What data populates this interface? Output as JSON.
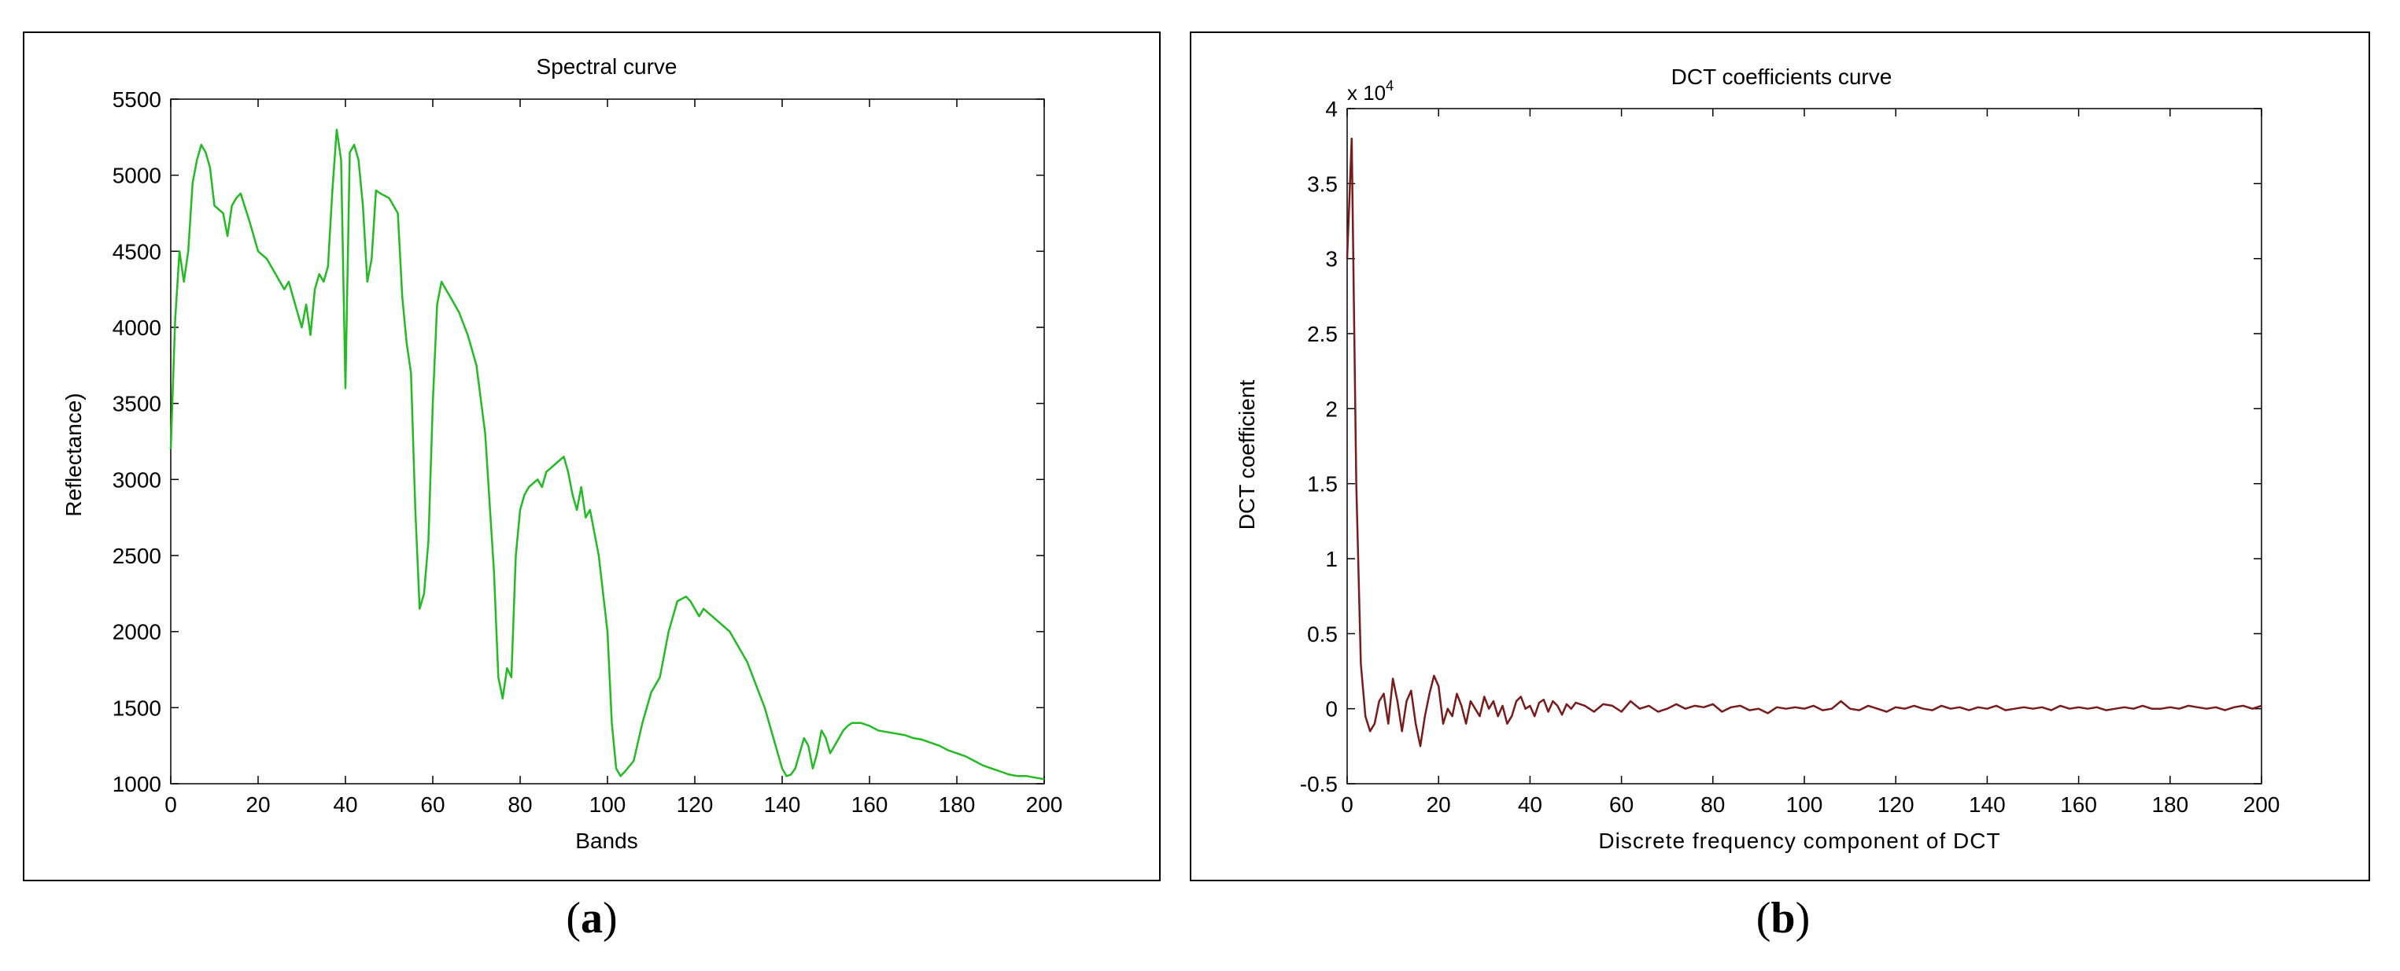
{
  "chart_data": [
    {
      "type": "line",
      "title": "Spectral curve",
      "xlabel": "Bands",
      "ylabel": "Reflectance)",
      "xlim": [
        0,
        200
      ],
      "ylim": [
        1000,
        5500
      ],
      "xticks": [
        0,
        20,
        40,
        60,
        80,
        100,
        120,
        140,
        160,
        180,
        200
      ],
      "yticks": [
        1000,
        1500,
        2000,
        2500,
        3000,
        3500,
        4000,
        4500,
        5000,
        5500
      ],
      "grid": false,
      "color": "#22bb22",
      "series": [
        {
          "x": [
            0,
            1,
            2,
            3,
            4,
            5,
            6,
            7,
            8,
            9,
            10,
            12,
            13,
            14,
            15,
            16,
            18,
            20,
            22,
            24,
            26,
            27,
            28,
            29,
            30,
            31,
            32,
            33,
            34,
            35,
            36,
            37,
            38,
            39,
            40,
            41,
            42,
            43,
            44,
            45,
            46,
            47,
            48,
            50,
            52,
            53,
            54,
            55,
            56,
            57,
            58,
            59,
            60,
            61,
            62,
            63,
            64,
            66,
            68,
            70,
            72,
            74,
            75,
            76,
            77,
            78,
            79,
            80,
            81,
            82,
            84,
            85,
            86,
            88,
            90,
            91,
            92,
            93,
            94,
            95,
            96,
            98,
            100,
            101,
            102,
            103,
            104,
            106,
            108,
            110,
            112,
            114,
            116,
            118,
            119,
            120,
            121,
            122,
            124,
            126,
            128,
            130,
            132,
            134,
            136,
            138,
            140,
            141,
            142,
            143,
            144,
            145,
            146,
            147,
            148,
            149,
            150,
            151,
            152,
            153,
            154,
            155,
            156,
            158,
            160,
            162,
            164,
            166,
            168,
            170,
            172,
            174,
            176,
            178,
            180,
            182,
            184,
            186,
            188,
            190,
            192,
            194,
            196,
            198,
            200
          ],
          "y": [
            3200,
            4050,
            4500,
            4300,
            4500,
            4950,
            5100,
            5200,
            5150,
            5050,
            4800,
            4750,
            4600,
            4800,
            4850,
            4880,
            4700,
            4500,
            4450,
            4350,
            4250,
            4300,
            4200,
            4100,
            4000,
            4150,
            3950,
            4250,
            4350,
            4300,
            4400,
            4900,
            5300,
            5100,
            3600,
            5150,
            5200,
            5100,
            4800,
            4300,
            4450,
            4900,
            4880,
            4850,
            4750,
            4200,
            3900,
            3700,
            2800,
            2150,
            2250,
            2600,
            3500,
            4150,
            4300,
            4250,
            4200,
            4100,
            3950,
            3750,
            3300,
            2400,
            1700,
            1560,
            1760,
            1700,
            2500,
            2800,
            2900,
            2950,
            3000,
            2950,
            3050,
            3100,
            3150,
            3050,
            2900,
            2800,
            2950,
            2750,
            2800,
            2500,
            2000,
            1400,
            1100,
            1050,
            1080,
            1150,
            1400,
            1600,
            1700,
            2000,
            2200,
            2230,
            2200,
            2150,
            2100,
            2150,
            2100,
            2050,
            2000,
            1900,
            1800,
            1650,
            1500,
            1300,
            1100,
            1050,
            1060,
            1100,
            1200,
            1300,
            1250,
            1100,
            1200,
            1350,
            1300,
            1200,
            1250,
            1300,
            1350,
            1380,
            1400,
            1400,
            1380,
            1350,
            1340,
            1330,
            1320,
            1300,
            1290,
            1270,
            1250,
            1220,
            1200,
            1180,
            1150,
            1120,
            1100,
            1080,
            1060,
            1050,
            1050,
            1040,
            1030
          ]
        }
      ]
    },
    {
      "type": "line",
      "title": "DCT coefficients curve",
      "xlabel": "Discrete frequency component of DCT",
      "ylabel": "DCT coefficient",
      "multiplier": "x 10",
      "multiplier_exp": "4",
      "xlim": [
        0,
        200
      ],
      "ylim": [
        -0.5,
        4
      ],
      "xticks": [
        0,
        20,
        40,
        60,
        80,
        100,
        120,
        140,
        160,
        180,
        200
      ],
      "yticks": [
        -0.5,
        0,
        0.5,
        1,
        1.5,
        2,
        2.5,
        3,
        3.5,
        4
      ],
      "ytick_labels": [
        "-0.5",
        "0",
        "0.5",
        "1",
        "1.5",
        "2",
        "2.5",
        "3",
        "3.5",
        "4"
      ],
      "grid": false,
      "color": "#7a1a1a",
      "series": [
        {
          "x": [
            0,
            1,
            2,
            3,
            4,
            5,
            6,
            7,
            8,
            9,
            10,
            11,
            12,
            13,
            14,
            15,
            16,
            17,
            18,
            19,
            20,
            21,
            22,
            23,
            24,
            25,
            26,
            27,
            28,
            29,
            30,
            31,
            32,
            33,
            34,
            35,
            36,
            37,
            38,
            39,
            40,
            41,
            42,
            43,
            44,
            45,
            46,
            47,
            48,
            49,
            50,
            52,
            54,
            56,
            58,
            60,
            62,
            64,
            66,
            68,
            70,
            72,
            74,
            76,
            78,
            80,
            82,
            84,
            86,
            88,
            90,
            92,
            94,
            96,
            98,
            100,
            102,
            104,
            106,
            108,
            110,
            112,
            114,
            116,
            118,
            120,
            122,
            124,
            126,
            128,
            130,
            132,
            134,
            136,
            138,
            140,
            142,
            144,
            146,
            148,
            150,
            152,
            154,
            156,
            158,
            160,
            162,
            164,
            166,
            168,
            170,
            172,
            174,
            176,
            178,
            180,
            182,
            184,
            186,
            188,
            190,
            192,
            194,
            196,
            198,
            200
          ],
          "y": [
            3.0,
            3.8,
            1.5,
            0.3,
            -0.05,
            -0.15,
            -0.1,
            0.05,
            0.1,
            -0.1,
            0.2,
            0.05,
            -0.15,
            0.05,
            0.12,
            -0.1,
            -0.25,
            -0.05,
            0.1,
            0.22,
            0.15,
            -0.1,
            0.0,
            -0.05,
            0.1,
            0.02,
            -0.1,
            0.05,
            0.0,
            -0.05,
            0.08,
            0.0,
            0.05,
            -0.05,
            0.02,
            -0.1,
            -0.05,
            0.05,
            0.08,
            0.0,
            0.02,
            -0.05,
            0.04,
            0.06,
            -0.02,
            0.05,
            0.02,
            -0.04,
            0.03,
            0.0,
            0.04,
            0.02,
            -0.02,
            0.03,
            0.02,
            -0.02,
            0.05,
            0.0,
            0.02,
            -0.02,
            0.0,
            0.03,
            0.0,
            0.02,
            0.01,
            0.03,
            -0.02,
            0.01,
            0.02,
            -0.01,
            0.0,
            -0.03,
            0.01,
            0.0,
            0.01,
            0.0,
            0.02,
            -0.01,
            0.0,
            0.05,
            0.0,
            -0.01,
            0.02,
            0.0,
            -0.02,
            0.01,
            0.0,
            0.02,
            0.0,
            -0.01,
            0.02,
            0.0,
            0.01,
            -0.01,
            0.01,
            0.0,
            0.02,
            -0.01,
            0.0,
            0.01,
            0.0,
            0.01,
            -0.01,
            0.02,
            0.0,
            0.01,
            0.0,
            0.01,
            -0.01,
            0.0,
            0.01,
            0.0,
            0.02,
            0.0,
            0.0,
            0.01,
            0.0,
            0.02,
            0.01,
            0.0,
            0.01,
            -0.01,
            0.01,
            0.02,
            0.0,
            0.02
          ]
        }
      ]
    }
  ],
  "captions": {
    "a": "a",
    "b": "b"
  }
}
